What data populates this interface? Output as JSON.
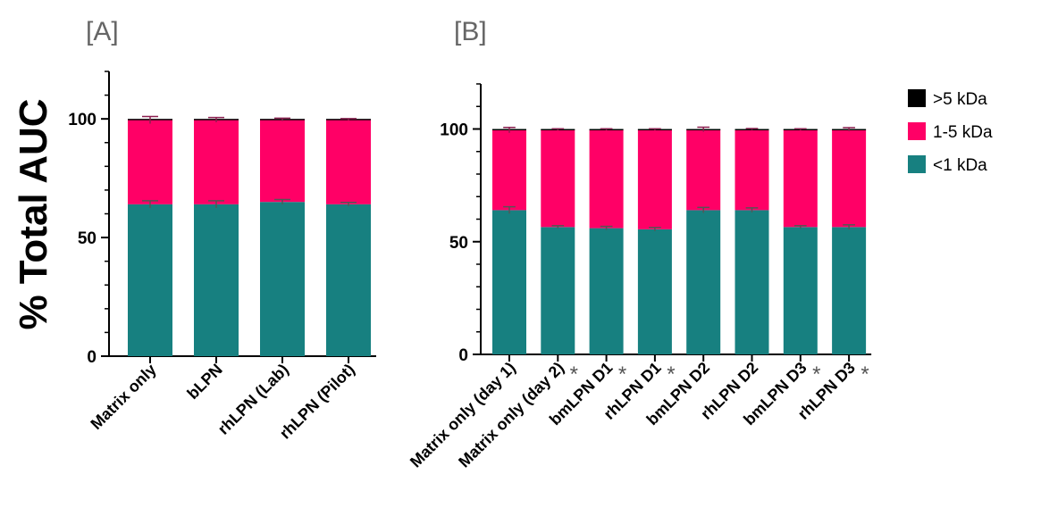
{
  "ylabel": "% Total AUC",
  "legend": [
    {
      "label": ">5 kDa",
      "color": "#000000"
    },
    {
      "label": "1-5 kDa",
      "color": "#FF0066"
    },
    {
      "label": "<1 kDa",
      "color": "#178080"
    }
  ],
  "colors": {
    "gt5": "#000000",
    "mid": "#FF0066",
    "lt1": "#178080",
    "error_bar": "#555555"
  },
  "significance_marker": "*",
  "chart_data": [
    {
      "type": "bar",
      "stacked": true,
      "panel": "[A]",
      "ylim": [
        0,
        120
      ],
      "yticks": [
        0,
        50,
        100
      ],
      "grid": false,
      "legend_position": "none",
      "categories": [
        "Matrix only",
        "bLPN",
        "rhLPN (Lab)",
        "rhLPN (Pilot)"
      ],
      "series": [
        {
          "name": "<1 kDa",
          "values": [
            64,
            64,
            65,
            64
          ],
          "errors": [
            1.5,
            1.5,
            1.0,
            0.8
          ]
        },
        {
          "name": "1-5 kDa",
          "values": [
            35.5,
            35.6,
            34.7,
            35.8
          ],
          "errors": [
            1.5,
            1.0,
            0.6,
            0.3
          ]
        },
        {
          "name": ">5 kDa",
          "values": [
            0.5,
            0.4,
            0.3,
            0.2
          ]
        }
      ],
      "significant": [
        false,
        false,
        false,
        false
      ]
    },
    {
      "type": "bar",
      "stacked": true,
      "panel": "[B]",
      "ylim": [
        0,
        120
      ],
      "yticks": [
        0,
        50,
        100
      ],
      "grid": false,
      "legend_position": "right",
      "categories": [
        "Matrix only (day 1)",
        "Matrix only (day 2)",
        "bmLPN D1",
        "rhLPN D1",
        "bmLPN D2",
        "rhLPN D2",
        "bmLPN D3",
        "rhLPN D3"
      ],
      "series": [
        {
          "name": "<1 kDa",
          "values": [
            64,
            56.5,
            56,
            55.5,
            64,
            64,
            56.5,
            56.5
          ],
          "errors": [
            1.5,
            0.6,
            0.8,
            0.8,
            1.2,
            1.0,
            0.6,
            1.0
          ]
        },
        {
          "name": "1-5 kDa",
          "values": [
            35.5,
            43.3,
            43.8,
            44.3,
            35.8,
            35.9,
            43.3,
            43.3
          ],
          "errors": [
            1.2,
            0.3,
            0.3,
            0.3,
            1.0,
            0.3,
            0.3,
            0.8
          ]
        },
        {
          "name": ">5 kDa",
          "values": [
            0.5,
            0.2,
            0.2,
            0.2,
            0.2,
            0.1,
            0.2,
            0.2
          ]
        }
      ],
      "significant": [
        false,
        true,
        true,
        true,
        false,
        false,
        true,
        true
      ]
    }
  ]
}
